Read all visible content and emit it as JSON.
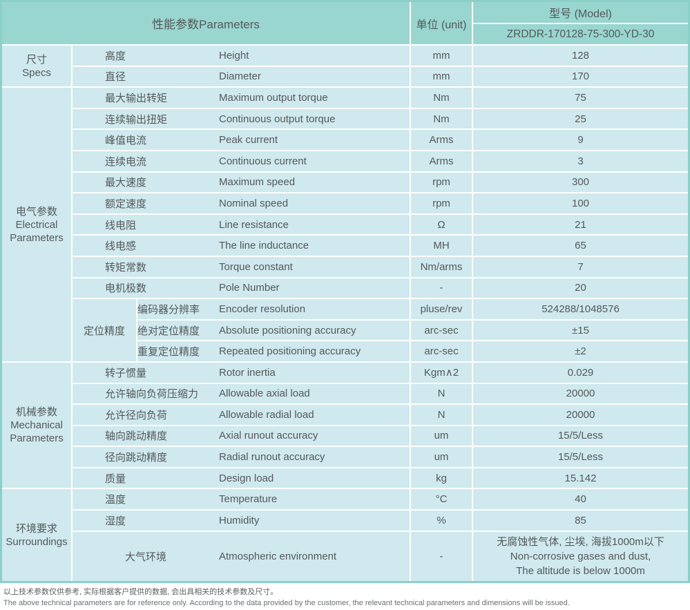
{
  "colors": {
    "header_teal": "#99d6d0",
    "outer_border": "#8ad0c9",
    "cell_blue": "#cfe9ee",
    "text_gray": "#54585a",
    "grid_line": "#ffffff"
  },
  "header": {
    "parameters_label": "性能参数Parameters",
    "unit_label": "单位 (unit)",
    "model_label": "型号 (Model)",
    "model_value": "ZRDDR-170128-75-300-YD-30"
  },
  "groups": {
    "specs": {
      "zh": "尺寸",
      "en": "Specs"
    },
    "electrical": {
      "zh": "电气参数",
      "en": "Electrical Parameters"
    },
    "positioning_accuracy": {
      "zh": "定位精度"
    },
    "mechanical": {
      "zh": "机械参数",
      "en": "Mechanical Parameters"
    },
    "surroundings": {
      "zh": "环境要求",
      "en": "Surroundings"
    }
  },
  "rows": [
    {
      "zh": "高度",
      "en": "Height",
      "unit": "mm",
      "value": "128"
    },
    {
      "zh": "直径",
      "en": "Diameter",
      "unit": "mm",
      "value": "170"
    },
    {
      "zh": "最大输出转矩",
      "en": "Maximum output torque",
      "unit": "Nm",
      "value": "75"
    },
    {
      "zh": "连续输出扭矩",
      "en": "Continuous output torque",
      "unit": "Nm",
      "value": "25"
    },
    {
      "zh": "峰值电流",
      "en": "Peak current",
      "unit": "Arms",
      "value": "9"
    },
    {
      "zh": "连续电流",
      "en": "Continuous current",
      "unit": "Arms",
      "value": "3"
    },
    {
      "zh": "最大速度",
      "en": "Maximum speed",
      "unit": "rpm",
      "value": "300"
    },
    {
      "zh": "额定速度",
      "en": "Nominal speed",
      "unit": "rpm",
      "value": "100"
    },
    {
      "zh": "线电阻",
      "en": "Line resistance",
      "unit": "Ω",
      "value": "21"
    },
    {
      "zh": "线电感",
      "en": "The line inductance",
      "unit": "MH",
      "value": "65"
    },
    {
      "zh": "转矩常数",
      "en": "Torque constant",
      "unit": "Nm/arms",
      "value": "7"
    },
    {
      "zh": "电机极数",
      "en": "Pole Number",
      "unit": "-",
      "value": "20"
    },
    {
      "zh": "编码器分辨率",
      "en": "Encoder resolution",
      "unit": "pluse/rev",
      "value": "524288/1048576"
    },
    {
      "zh": "绝对定位精度",
      "en": "Absolute positioning accuracy",
      "unit": "arc-sec",
      "value": "±15"
    },
    {
      "zh": "重复定位精度",
      "en": "Repeated positioning accuracy",
      "unit": "arc-sec",
      "value": "±2"
    },
    {
      "zh": "转子惯量",
      "en": "Rotor inertia",
      "unit": "Kgm∧2",
      "value": "0.029"
    },
    {
      "zh": "允许轴向负荷压缩力",
      "en": "Allowable axial load",
      "unit": "N",
      "value": "20000"
    },
    {
      "zh": "允许径向负荷",
      "en": "Allowable radial load",
      "unit": "N",
      "value": "20000"
    },
    {
      "zh": "轴向跳动精度",
      "en": "Axial runout accuracy",
      "unit": "um",
      "value": "15/5/Less"
    },
    {
      "zh": "径向跳动精度",
      "en": "Radial runout accuracy",
      "unit": "um",
      "value": "15/5/Less"
    },
    {
      "zh": "质量",
      "en": "Design load",
      "unit": "kg",
      "value": "15.142"
    },
    {
      "zh": "温度",
      "en": "Temperature",
      "unit": "°C",
      "value": "40"
    },
    {
      "zh": "湿度",
      "en": "Humidity",
      "unit": "%",
      "value": "85"
    }
  ],
  "atmo": {
    "zh": "大气环境",
    "en": "Atmospheric environment",
    "unit": "-",
    "value_lines": [
      "无腐蚀性气体, 尘埃, 海拔1000m以下",
      "Non-corrosive gases and dust,",
      "The altitude is below 1000m"
    ]
  },
  "footnotes": {
    "zh": "以上技术参数仅供参考, 实际根据客户提供的数据, 会出具相关的技术参数及尺寸。",
    "en": "The above technical parameters are for reference only. According to the data provided by the customer, the relevant technical parameters and dimensions will be issued."
  }
}
